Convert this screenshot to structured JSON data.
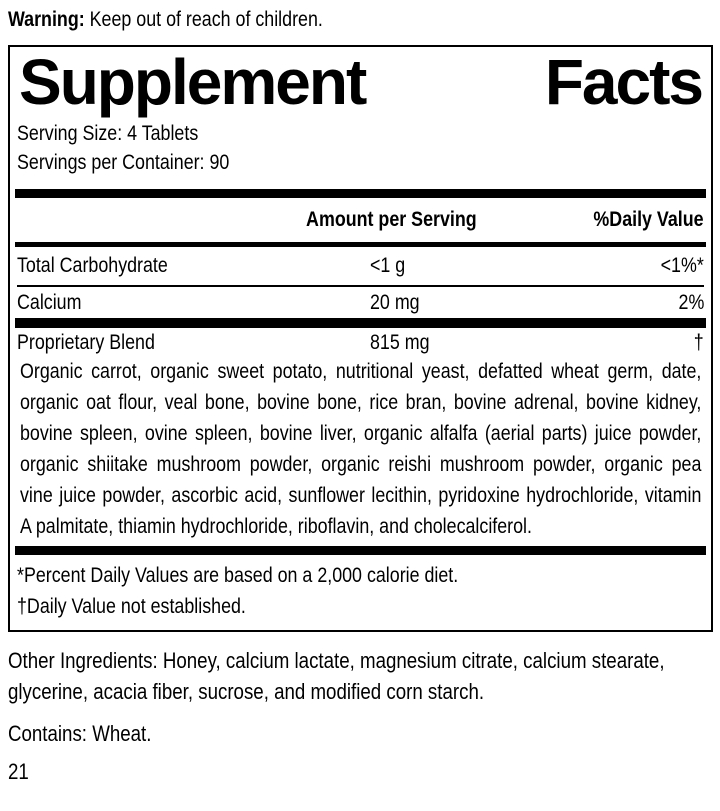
{
  "warning": {
    "label": "Warning:",
    "text": " Keep out of reach of children."
  },
  "panel": {
    "title": {
      "word1": "Supplement",
      "word2": "Facts"
    },
    "serving_size": "Serving Size: 4 Tablets",
    "servings_per_container": "Servings per Container: 90",
    "table": {
      "headers": {
        "amount": "Amount per Serving",
        "daily_value": "%Daily Value"
      },
      "rows": [
        {
          "name": "Total Carbohydrate",
          "amount": "<1 g",
          "dv": "<1%*"
        },
        {
          "name": "Calcium",
          "amount": "20 mg",
          "dv": "2%"
        },
        {
          "name": "Proprietary Blend",
          "amount": "815 mg",
          "dv": "†"
        }
      ],
      "blend_description": "Organic carrot, organic sweet potato, nutritional yeast, defatted wheat germ, date, organic oat flour, veal bone, bovine bone, rice bran, bovine adrenal, bovine kidney, bovine spleen, ovine spleen, bovine liver, organic alfalfa (aerial parts) juice powder, organic shiitake mushroom powder, organic reishi mushroom powder, organic pea vine juice powder, ascorbic acid, sunflower lecithin, pyridoxine hydrochloride, vitamin A palmitate, thiamin hydrochloride, riboflavin, and cholecalciferol."
    },
    "footnotes": [
      "*Percent Daily Values are based on a 2,000 calorie diet.",
      "†Daily Value not established."
    ]
  },
  "other_ingredients": "Other Ingredients: Honey, calcium lactate, magnesium citrate, calcium stearate, glycerine, acacia fiber, sucrose, and modified corn starch.",
  "contains": "Contains: Wheat.",
  "page_number": "21",
  "colors": {
    "text": "#000000",
    "background": "#ffffff"
  }
}
